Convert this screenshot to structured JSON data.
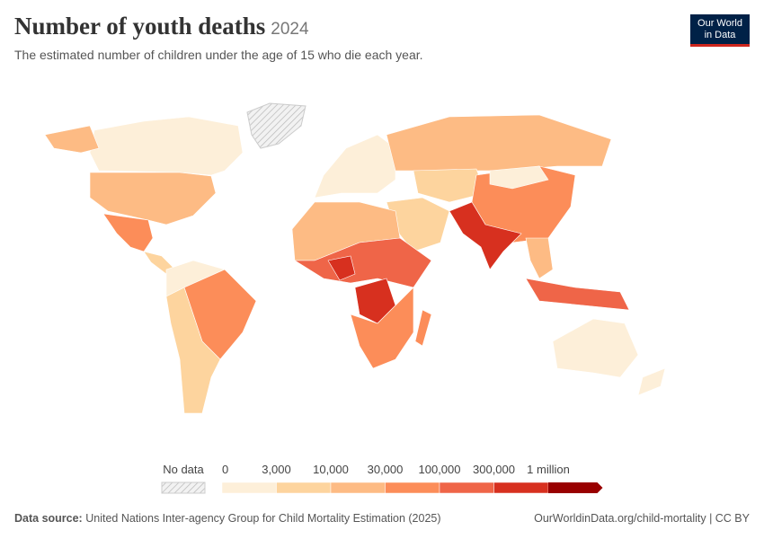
{
  "header": {
    "title": "Number of youth deaths",
    "year": "2024",
    "subtitle": "The estimated number of children under the age of 15 who die each year.",
    "logo": [
      "Our World",
      "in Data"
    ]
  },
  "legend": {
    "no_data": "No data",
    "labels": [
      "0",
      "3,000",
      "10,000",
      "30,000",
      "100,000",
      "300,000",
      "1 million"
    ],
    "colors": [
      "#fdefd9",
      "#fdd49e",
      "#fdbb84",
      "#fc8d59",
      "#ef6548",
      "#d7301f",
      "#990000"
    ]
  },
  "footer": {
    "source_label": "Data source:",
    "source": "United Nations Inter-agency Group for Child Mortality Estimation (2025)",
    "url": "OurWorldinData.org/child-mortality | CC BY"
  }
}
